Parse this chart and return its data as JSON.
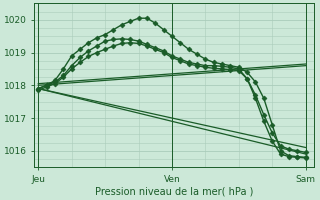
{
  "background_color": "#cce8d8",
  "grid_color": "#aaccbb",
  "line_color": "#1a5c28",
  "xlabel": "Pression niveau de la mer( hPa )",
  "xtick_labels": [
    "Jeu",
    "Ven",
    "Sam"
  ],
  "xtick_positions": [
    0,
    16,
    32
  ],
  "xlim": [
    -0.5,
    33
  ],
  "ylim": [
    1015.5,
    1020.5
  ],
  "yticks": [
    1016,
    1017,
    1018,
    1019,
    1020
  ],
  "series": [
    {
      "x": [
        0,
        1,
        2,
        3,
        4,
        5,
        6,
        7,
        8,
        9,
        10,
        11,
        12,
        13,
        14,
        15,
        16,
        17,
        18,
        19,
        20,
        21,
        22,
        23,
        24,
        25,
        26,
        27,
        28,
        29,
        30,
        31,
        32
      ],
      "y": [
        1017.9,
        1018.0,
        1018.15,
        1018.5,
        1018.9,
        1019.1,
        1019.3,
        1019.45,
        1019.55,
        1019.7,
        1019.85,
        1019.95,
        1020.05,
        1020.05,
        1019.9,
        1019.7,
        1019.5,
        1019.3,
        1019.1,
        1018.95,
        1018.8,
        1018.7,
        1018.65,
        1018.6,
        1018.55,
        1018.4,
        1018.1,
        1017.6,
        1016.8,
        1016.0,
        1015.85,
        1015.82,
        1015.8
      ],
      "marker": "D",
      "markersize": 2.5,
      "linewidth": 1.0
    },
    {
      "x": [
        0,
        1,
        2,
        3,
        4,
        5,
        6,
        7,
        8,
        9,
        10,
        11,
        12,
        13,
        14,
        15,
        16,
        17,
        18,
        19,
        20,
        21,
        22,
        23,
        24,
        25,
        26,
        27,
        28,
        29,
        30,
        31,
        32
      ],
      "y": [
        1017.9,
        1018.0,
        1018.1,
        1018.3,
        1018.6,
        1018.85,
        1019.05,
        1019.2,
        1019.35,
        1019.4,
        1019.42,
        1019.4,
        1019.35,
        1019.25,
        1019.15,
        1019.05,
        1018.9,
        1018.8,
        1018.7,
        1018.65,
        1018.6,
        1018.6,
        1018.58,
        1018.55,
        1018.5,
        1018.2,
        1017.6,
        1016.9,
        1016.3,
        1015.9,
        1015.82,
        1015.8,
        1015.78
      ],
      "marker": "D",
      "markersize": 2.5,
      "linewidth": 1.0
    },
    {
      "x": [
        0,
        1,
        2,
        3,
        4,
        5,
        6,
        7,
        8,
        9,
        10,
        11,
        12,
        13,
        14,
        15,
        16,
        17,
        18,
        19,
        20,
        21,
        22,
        23,
        24,
        25,
        26,
        27,
        28,
        29,
        30,
        31,
        32
      ],
      "y": [
        1017.85,
        1017.95,
        1018.05,
        1018.25,
        1018.5,
        1018.7,
        1018.88,
        1019.0,
        1019.1,
        1019.2,
        1019.28,
        1019.3,
        1019.28,
        1019.2,
        1019.1,
        1019.0,
        1018.85,
        1018.75,
        1018.65,
        1018.6,
        1018.55,
        1018.52,
        1018.5,
        1018.48,
        1018.45,
        1018.2,
        1017.7,
        1017.1,
        1016.55,
        1016.15,
        1016.05,
        1016.0,
        1015.95
      ],
      "marker": "D",
      "markersize": 2.5,
      "linewidth": 1.0
    },
    {
      "x": [
        0,
        32
      ],
      "y": [
        1017.9,
        1015.9
      ],
      "marker": null,
      "markersize": 0,
      "linewidth": 0.9
    },
    {
      "x": [
        0,
        32
      ],
      "y": [
        1017.9,
        1016.1
      ],
      "marker": null,
      "markersize": 0,
      "linewidth": 0.9
    },
    {
      "x": [
        0,
        32
      ],
      "y": [
        1018.0,
        1018.6
      ],
      "marker": null,
      "markersize": 0,
      "linewidth": 0.9
    },
    {
      "x": [
        0,
        32
      ],
      "y": [
        1018.05,
        1018.65
      ],
      "marker": null,
      "markersize": 0,
      "linewidth": 0.9
    }
  ]
}
